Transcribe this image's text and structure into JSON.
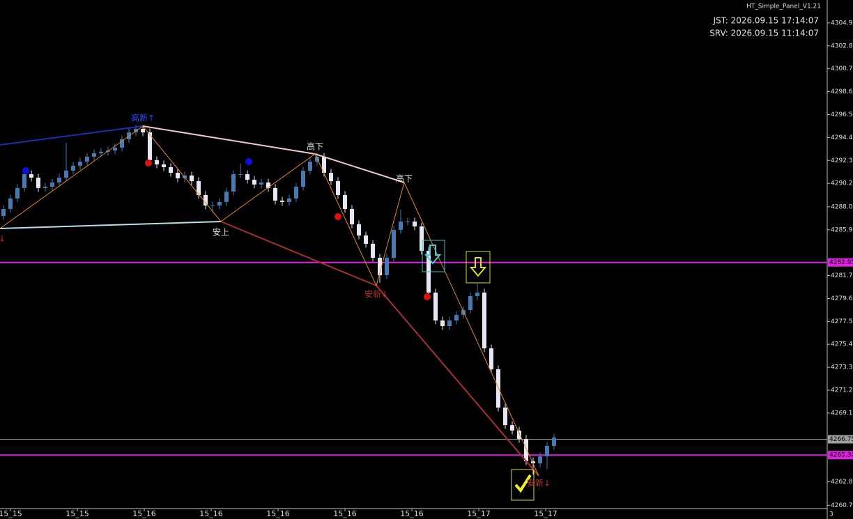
{
  "chart_data": {
    "type": "candlestick",
    "title": "HT_Simple_Panel_V1.21",
    "info_lines": [
      "JST: 2026.09.15 17:14:07",
      "SRV: 2026.09.15 11:14:07"
    ],
    "up_color": "#4a78b0",
    "down_color": "#e6e6f5",
    "ylim": [
      4260.4,
      4307.0
    ],
    "yticks": [
      {
        "value": 4304.9,
        "label": "4304.90"
      },
      {
        "value": 4302.8,
        "label": "4302.80"
      },
      {
        "value": 4300.7,
        "label": "4300.70"
      },
      {
        "value": 4298.6,
        "label": "4298.60"
      },
      {
        "value": 4296.5,
        "label": "4296.50"
      },
      {
        "value": 4294.4,
        "label": "4294.40"
      },
      {
        "value": 4292.3,
        "label": "4292.30"
      },
      {
        "value": 4290.2,
        "label": "4290.20"
      },
      {
        "value": 4288.05,
        "label": "4288.05"
      },
      {
        "value": 4285.95,
        "label": "4285.95"
      },
      {
        "value": 4281.75,
        "label": "4281.75"
      },
      {
        "value": 4279.65,
        "label": "4279.65"
      },
      {
        "value": 4277.55,
        "label": "4277.55"
      },
      {
        "value": 4275.45,
        "label": "4275.45"
      },
      {
        "value": 4273.35,
        "label": "4273.35"
      },
      {
        "value": 4271.25,
        "label": "4271.25"
      },
      {
        "value": 4269.15,
        "label": "4269.15"
      },
      {
        "value": 4262.85,
        "label": "4262.85"
      },
      {
        "value": 4260.7,
        "label": "4260.70"
      }
    ],
    "levels": [
      {
        "value": 4282.95,
        "label": "4282.95",
        "color": "#e020e0"
      },
      {
        "value": 4266.75,
        "label": "4266.75",
        "color": "#a0a0a0"
      },
      {
        "value": 4265.3,
        "label": "4265.30",
        "color": "#e020e0"
      }
    ],
    "x_labels": [
      "15_15",
      "15_15",
      "15_16",
      "15_16",
      "15_16",
      "15_16",
      "15_16",
      "15_17",
      "15_17"
    ],
    "corner_label": "3",
    "annotations": [
      "高新↑",
      "高下",
      "高下",
      "安上",
      "安新↓",
      "安新↓",
      "↓"
    ],
    "candles": [
      [
        4287.2,
        4288.2,
        4286.85,
        4287.85
      ],
      [
        4287.85,
        4289.16,
        4287.5,
        4288.81
      ],
      [
        4288.81,
        4290.12,
        4288.46,
        4289.77
      ],
      [
        4289.77,
        4291.39,
        4289.42,
        4291.04
      ],
      [
        4291.04,
        4291.39,
        4290.37,
        4290.72
      ],
      [
        4290.72,
        4291.07,
        4289.42,
        4289.77
      ],
      [
        4289.77,
        4290.24,
        4289.42,
        4289.89
      ],
      [
        4289.89,
        4290.63,
        4289.54,
        4290.28
      ],
      [
        4290.28,
        4291.07,
        4289.93,
        4290.72
      ],
      [
        4290.72,
        4293.9,
        4290.37,
        4291.36
      ],
      [
        4291.36,
        4292.16,
        4291.01,
        4291.81
      ],
      [
        4291.81,
        4292.54,
        4291.46,
        4292.19
      ],
      [
        4292.19,
        4292.99,
        4291.84,
        4292.64
      ],
      [
        4292.64,
        4293.31,
        4292.29,
        4292.96
      ],
      [
        4292.96,
        4293.44,
        4292.61,
        4293.09
      ],
      [
        4293.09,
        4293.56,
        4292.74,
        4293.21
      ],
      [
        4293.21,
        4293.82,
        4292.86,
        4293.47
      ],
      [
        4293.47,
        4294.59,
        4293.12,
        4294.24
      ],
      [
        4294.24,
        4295.22,
        4293.89,
        4294.87
      ],
      [
        4294.87,
        4295.54,
        4294.52,
        4295.19
      ],
      [
        4295.19,
        4295.54,
        4294.52,
        4294.87
      ],
      [
        4294.87,
        4295.22,
        4291.97,
        4292.32
      ],
      [
        4292.32,
        4292.67,
        4291.59,
        4291.94
      ],
      [
        4291.94,
        4292.29,
        4291.33,
        4291.68
      ],
      [
        4291.68,
        4292.03,
        4290.82,
        4291.17
      ],
      [
        4291.17,
        4291.52,
        4290.31,
        4290.66
      ],
      [
        4290.66,
        4291.27,
        4290.31,
        4290.92
      ],
      [
        4290.92,
        4291.27,
        4290.05,
        4290.4
      ],
      [
        4290.4,
        4290.75,
        4288.78,
        4289.13
      ],
      [
        4289.13,
        4289.48,
        4287.82,
        4288.17
      ],
      [
        4288.17,
        4288.52,
        4287.5,
        4288.17
      ],
      [
        4288.17,
        4288.84,
        4287.82,
        4288.49
      ],
      [
        4288.49,
        4289.8,
        4288.14,
        4289.45
      ],
      [
        4289.45,
        4291.39,
        4289.1,
        4291.04
      ],
      [
        4291.04,
        4292.0,
        4290.69,
        4291.04
      ],
      [
        4291.04,
        4291.39,
        4290.18,
        4290.53
      ],
      [
        4290.53,
        4290.88,
        4289.74,
        4290.09
      ],
      [
        4290.09,
        4290.63,
        4289.74,
        4290.28
      ],
      [
        4290.28,
        4290.63,
        4289.42,
        4289.77
      ],
      [
        4289.77,
        4290.12,
        4288.27,
        4288.62
      ],
      [
        4288.62,
        4288.97,
        4288.14,
        4288.49
      ],
      [
        4288.49,
        4289.16,
        4288.14,
        4288.81
      ],
      [
        4288.81,
        4290.24,
        4288.46,
        4289.89
      ],
      [
        4289.89,
        4291.71,
        4289.54,
        4291.36
      ],
      [
        4291.36,
        4292.54,
        4291.01,
        4292.19
      ],
      [
        4292.19,
        4292.99,
        4291.84,
        4292.64
      ],
      [
        4292.64,
        4292.99,
        4290.82,
        4291.17
      ],
      [
        4291.17,
        4291.52,
        4290.05,
        4290.4
      ],
      [
        4290.4,
        4290.75,
        4288.78,
        4289.13
      ],
      [
        4289.13,
        4289.48,
        4287.5,
        4287.85
      ],
      [
        4287.85,
        4288.2,
        4286.1,
        4286.45
      ],
      [
        4286.45,
        4286.8,
        4285.07,
        4285.42
      ],
      [
        4285.42,
        4285.77,
        4284.31,
        4284.66
      ],
      [
        4284.66,
        4285.01,
        4283.03,
        4283.38
      ],
      [
        4283.38,
        4283.73,
        4281.1,
        4281.78
      ],
      [
        4281.78,
        4283.73,
        4281.43,
        4283.38
      ],
      [
        4283.38,
        4286.28,
        4283.03,
        4285.93
      ],
      [
        4285.93,
        4287.8,
        4285.58,
        4286.7
      ],
      [
        4286.7,
        4287.05,
        4286.35,
        4286.7
      ],
      [
        4286.7,
        4287.05,
        4285.9,
        4286.25
      ],
      [
        4286.25,
        4286.6,
        4283.67,
        4284.02
      ],
      [
        4284.02,
        4284.37,
        4279.84,
        4280.19
      ],
      [
        4280.19,
        4280.54,
        4277.28,
        4277.63
      ],
      [
        4277.63,
        4277.98,
        4276.77,
        4277.12
      ],
      [
        4277.12,
        4277.98,
        4276.77,
        4277.63
      ],
      [
        4277.63,
        4278.49,
        4277.28,
        4278.14
      ],
      [
        4278.14,
        4278.94,
        4277.79,
        4278.59
      ],
      [
        4278.59,
        4280.22,
        4278.24,
        4279.87
      ],
      [
        4279.87,
        4281.0,
        4279.52,
        4280.19
      ],
      [
        4280.19,
        4280.54,
        4274.73,
        4275.08
      ],
      [
        4275.08,
        4275.43,
        4272.81,
        4273.16
      ],
      [
        4273.16,
        4273.51,
        4269.3,
        4269.65
      ],
      [
        4269.65,
        4270.0,
        4267.7,
        4268.05
      ],
      [
        4268.05,
        4268.4,
        4267.19,
        4267.54
      ],
      [
        4267.54,
        4267.89,
        4266.43,
        4266.78
      ],
      [
        4266.78,
        4267.13,
        4264.38,
        4264.73
      ],
      [
        4264.73,
        4265.08,
        4263.5,
        4264.54
      ],
      [
        4264.54,
        4265.53,
        4264.19,
        4265.18
      ],
      [
        4265.18,
        4266.49,
        4264.0,
        4266.14
      ],
      [
        4266.14,
        4267.26,
        4265.79,
        4266.91
      ]
    ]
  }
}
